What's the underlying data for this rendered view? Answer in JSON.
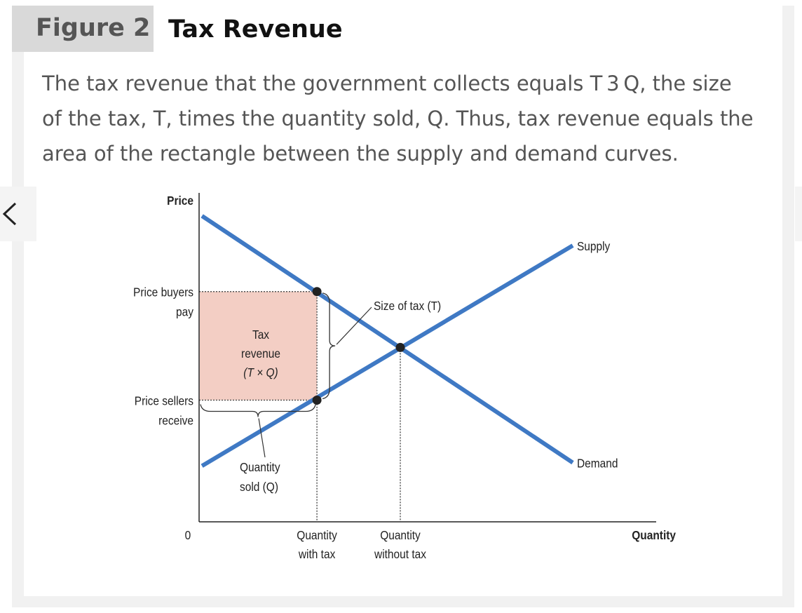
{
  "figure": {
    "number": "Figure 2",
    "title": "Tax Revenue",
    "caption_lines": [
      "The tax revenue that the government collects equals T 3 Q, the size",
      "of the tax, T, times the quantity sold, Q. Thus, tax revenue equals the",
      "area of the rectangle between the supply and demand curves."
    ]
  },
  "navigation": {
    "prev_icon": "chevron-left-icon",
    "next_icon": "chevron-right-icon"
  },
  "chart_data": {
    "type": "line",
    "title": "",
    "xlabel": "Quantity",
    "ylabel": "Price",
    "origin_label": "0",
    "x_tick_labels": [
      {
        "key": "with_tax",
        "lines": [
          "Quantity",
          "with tax"
        ]
      },
      {
        "key": "without_tax",
        "lines": [
          "Quantity",
          "without tax"
        ]
      }
    ],
    "y_tick_labels": [
      {
        "key": "buyers_pay",
        "lines": [
          "Price buyers",
          "pay"
        ]
      },
      {
        "key": "sellers_receive",
        "lines": [
          "Price sellers",
          "receive"
        ]
      }
    ],
    "series": [
      {
        "name": "Supply",
        "color": "#3f79c4",
        "points": [
          [
            0.01,
            0.17
          ],
          [
            1.3,
            0.84
          ]
        ]
      },
      {
        "name": "Demand",
        "color": "#3f79c4",
        "points": [
          [
            0.01,
            0.93
          ],
          [
            1.3,
            0.18
          ]
        ]
      }
    ],
    "equilibrium": {
      "quantity": 0.7,
      "price": 0.53
    },
    "tax_equilibrium": {
      "quantity": 0.41,
      "price_buyers_pay": 0.7,
      "price_sellers_receive": 0.37
    },
    "xlim": [
      0,
      1.6
    ],
    "ylim": [
      0,
      1
    ],
    "annotations": {
      "tax_revenue_lines": [
        "Tax",
        "revenue",
        "(T × Q)"
      ],
      "size_of_tax": "Size of tax (T)",
      "quantity_sold_lines": [
        "Quantity",
        "sold (Q)"
      ]
    },
    "colors": {
      "curve": "#3f79c4",
      "revenue_area": "#f3cec4",
      "axis": "#222222",
      "dot": "#222222"
    }
  }
}
